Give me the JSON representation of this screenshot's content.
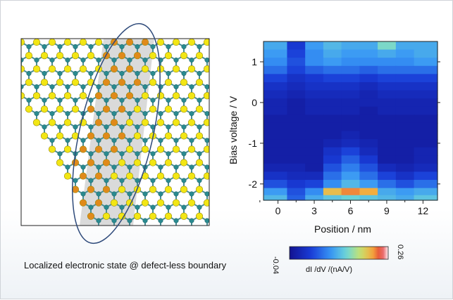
{
  "figure": {
    "caption": "Localized electronic state @ defect-less boundary",
    "colors": {
      "sulfur_atom": "#f2e614",
      "metal_atom": "#2a8a90",
      "boundary_atom": "#e08a1a",
      "boundary_band": "#d4d4d4",
      "ellipse": "#2e4a7a"
    }
  },
  "chart_data": {
    "type": "heatmap",
    "xlabel": "Position / nm",
    "ylabel": "Bias voltage / V",
    "x_ticks": [
      0,
      3,
      6,
      9,
      12
    ],
    "y_ticks": [
      1,
      0,
      -1,
      -2
    ],
    "xlim": [
      -1.2,
      13.2
    ],
    "ylim": [
      -2.4,
      1.5
    ],
    "columns_x": [
      0,
      1.5,
      3,
      4.5,
      6,
      7.5,
      9,
      10.5,
      12
    ],
    "rows_bias": [
      1.4,
      1.2,
      1.0,
      0.8,
      0.6,
      0.4,
      0.2,
      0.0,
      -0.2,
      -0.4,
      -0.6,
      -0.8,
      -1.0,
      -1.2,
      -1.4,
      -1.6,
      -1.8,
      -2.0,
      -2.2,
      -2.35
    ],
    "values": [
      [
        0.1,
        0.02,
        0.09,
        0.11,
        0.1,
        0.1,
        0.14,
        0.1,
        0.1
      ],
      [
        0.09,
        0.03,
        0.08,
        0.1,
        0.09,
        0.09,
        0.1,
        0.09,
        0.1
      ],
      [
        0.08,
        0.04,
        0.08,
        0.09,
        0.08,
        0.08,
        0.08,
        0.08,
        0.09
      ],
      [
        0.06,
        0.03,
        0.05,
        0.06,
        0.06,
        0.05,
        0.06,
        0.06,
        0.06
      ],
      [
        0.03,
        0.01,
        0.02,
        0.03,
        0.03,
        0.02,
        0.03,
        0.03,
        0.03
      ],
      [
        0.01,
        0.0,
        0.01,
        0.01,
        0.01,
        0.0,
        0.01,
        0.01,
        0.01
      ],
      [
        0.0,
        -0.01,
        0.0,
        0.0,
        0.0,
        -0.01,
        0.0,
        0.0,
        0.0
      ],
      [
        -0.01,
        -0.02,
        -0.01,
        -0.01,
        -0.01,
        -0.01,
        -0.01,
        -0.01,
        -0.01
      ],
      [
        -0.01,
        -0.02,
        -0.01,
        -0.01,
        -0.01,
        -0.02,
        -0.01,
        -0.01,
        -0.01
      ],
      [
        -0.02,
        -0.02,
        -0.02,
        -0.02,
        -0.02,
        -0.02,
        -0.02,
        -0.02,
        -0.02
      ],
      [
        -0.02,
        -0.02,
        -0.02,
        -0.02,
        -0.02,
        -0.02,
        -0.02,
        -0.02,
        -0.02
      ],
      [
        -0.02,
        -0.02,
        -0.02,
        -0.02,
        -0.01,
        -0.02,
        -0.02,
        -0.02,
        -0.02
      ],
      [
        -0.02,
        -0.02,
        -0.02,
        -0.01,
        0.0,
        -0.01,
        -0.02,
        -0.02,
        -0.02
      ],
      [
        -0.02,
        -0.02,
        -0.02,
        0.01,
        0.03,
        0.0,
        -0.02,
        -0.02,
        -0.01
      ],
      [
        -0.02,
        -0.02,
        -0.02,
        0.02,
        0.05,
        0.02,
        -0.02,
        -0.02,
        -0.01
      ],
      [
        -0.01,
        -0.01,
        -0.02,
        0.04,
        0.07,
        0.04,
        0.0,
        -0.01,
        0.0
      ],
      [
        0.01,
        0.0,
        0.0,
        0.06,
        0.09,
        0.06,
        0.03,
        0.01,
        0.03
      ],
      [
        0.04,
        0.02,
        0.03,
        0.08,
        0.11,
        0.09,
        0.06,
        0.04,
        0.06
      ],
      [
        0.09,
        0.04,
        0.08,
        0.2,
        0.22,
        0.21,
        0.1,
        0.09,
        0.1
      ],
      [
        0.11,
        0.05,
        0.1,
        0.12,
        0.13,
        0.12,
        0.11,
        0.1,
        0.12
      ]
    ],
    "colorbar": {
      "min_label": "-0.04",
      "max_label": "0.26",
      "min": -0.04,
      "max": 0.26,
      "label": "dI /dV /(nA/V)"
    }
  }
}
